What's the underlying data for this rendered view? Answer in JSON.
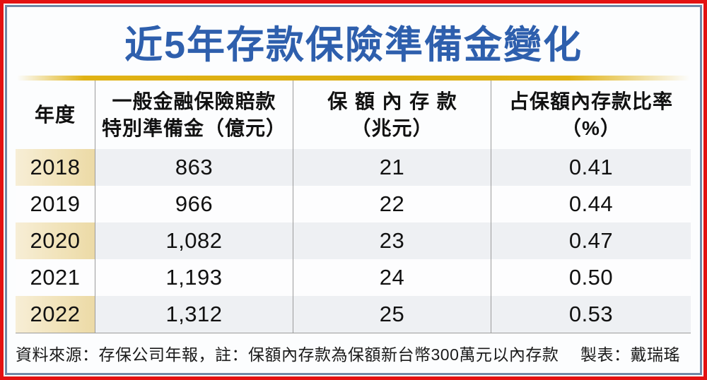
{
  "title": "近5年存款保險準備金變化",
  "table": {
    "headers": [
      {
        "line1": "年度",
        "line2": ""
      },
      {
        "line1": "一般金融保險賠款",
        "line2": "特別準備金（億元）"
      },
      {
        "line1": "保額內存款",
        "line2": "（兆元）"
      },
      {
        "line1": "占保額內存款比率",
        "line2": "（%）"
      }
    ],
    "rows": [
      {
        "year": "2018",
        "reserve": "863",
        "deposits": "21",
        "ratio": "0.41"
      },
      {
        "year": "2019",
        "reserve": "966",
        "deposits": "22",
        "ratio": "0.44"
      },
      {
        "year": "2020",
        "reserve": "1,082",
        "deposits": "23",
        "ratio": "0.47"
      },
      {
        "year": "2021",
        "reserve": "1,193",
        "deposits": "24",
        "ratio": "0.50"
      },
      {
        "year": "2022",
        "reserve": "1,312",
        "deposits": "25",
        "ratio": "0.53"
      }
    ]
  },
  "footer": {
    "source": "資料來源：存保公司年報，註：保額內存款為保額新台幣300萬元以內存款",
    "credit": "製表：戴瑞瑤"
  },
  "colors": {
    "title_blue": "#2e5fad",
    "gold_bar": "#e0b214",
    "outer_border_red": "#e31212",
    "inner_border_blue": "#7089a8",
    "year_stripe_beige": "#f1e3ba",
    "row_stripe_gray": "#eef0f3",
    "divider_gray": "#9b9b9b"
  },
  "chart_data": {
    "type": "table",
    "title": "近5年存款保險準備金變化",
    "columns": [
      "年度",
      "一般金融保險賠款特別準備金（億元）",
      "保額內存款（兆元）",
      "占保額內存款比率（%）"
    ],
    "categories": [
      "2018",
      "2019",
      "2020",
      "2021",
      "2022"
    ],
    "series": [
      {
        "name": "一般金融保險賠款特別準備金（億元）",
        "values": [
          863,
          966,
          1082,
          1193,
          1312
        ]
      },
      {
        "name": "保額內存款（兆元）",
        "values": [
          21,
          22,
          23,
          24,
          25
        ]
      },
      {
        "name": "占保額內存款比率（%）",
        "values": [
          0.41,
          0.44,
          0.47,
          0.5,
          0.53
        ]
      }
    ],
    "source_note": "資料來源：存保公司年報，註：保額內存款為保額新台幣300萬元以內存款",
    "credit": "製表：戴瑞瑤"
  }
}
